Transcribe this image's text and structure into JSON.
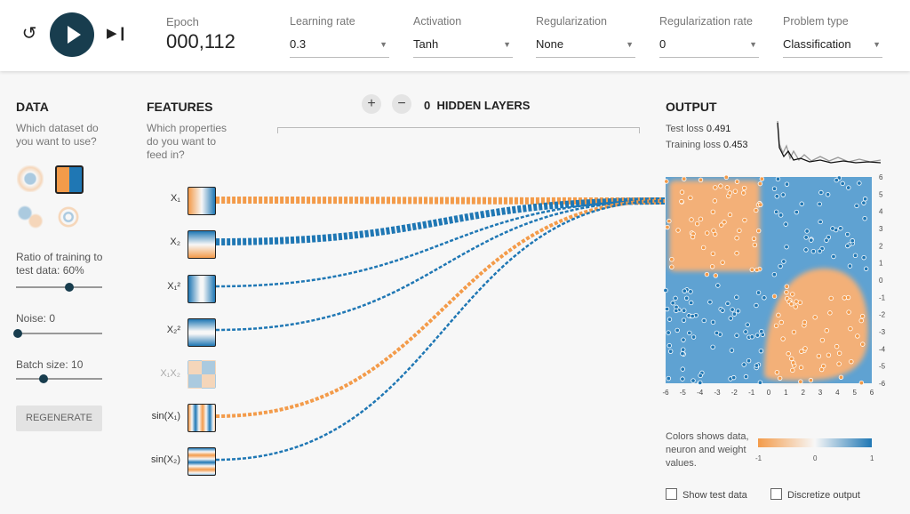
{
  "controls": {
    "epoch_label": "Epoch",
    "epoch_value": "000,112",
    "learning_rate_label": "Learning rate",
    "learning_rate_value": "0.3",
    "activation_label": "Activation",
    "activation_value": "Tanh",
    "regularization_label": "Regularization",
    "regularization_value": "None",
    "regularization_rate_label": "Regularization rate",
    "regularization_rate_value": "0",
    "problem_type_label": "Problem type",
    "problem_type_value": "Classification"
  },
  "data_panel": {
    "title": "DATA",
    "question": "Which dataset do you want to use?",
    "ratio_label": "Ratio of training to test data:  60%",
    "ratio_value": 60,
    "noise_label": "Noise:  0",
    "noise_value": 0,
    "batch_label": "Batch size:  10",
    "batch_value": 10,
    "regenerate": "REGENERATE"
  },
  "features_panel": {
    "title": "FEATURES",
    "question": "Which properties do you want to feed in?",
    "items": [
      {
        "label": "X₁",
        "enabled": true
      },
      {
        "label": "X₂",
        "enabled": true
      },
      {
        "label": "X₁²",
        "enabled": true
      },
      {
        "label": "X₂²",
        "enabled": true
      },
      {
        "label": "X₁X₂",
        "enabled": false
      },
      {
        "label": "sin(X₁)",
        "enabled": true
      },
      {
        "label": "sin(X₂)",
        "enabled": true
      }
    ]
  },
  "network": {
    "hidden_count": "0",
    "hidden_label": "HIDDEN LAYERS",
    "add": "+",
    "remove": "−"
  },
  "output_panel": {
    "title": "OUTPUT",
    "test_loss_label": "Test loss",
    "test_loss": "0.491",
    "training_loss_label": "Training loss",
    "training_loss": "0.453",
    "legend_text": "Colors shows data, neuron and weight values.",
    "legend_ticks": [
      "-1",
      "0",
      "1"
    ],
    "show_test": "Show test data",
    "discretize": "Discretize output"
  },
  "colors": {
    "positive": "#1f77b4",
    "negative": "#f39b4a",
    "dark": "#183d4e"
  },
  "chart_data": {
    "type": "scatter",
    "xlim": [
      -6,
      6
    ],
    "ylim": [
      -6,
      6
    ],
    "x_ticks": [
      "-6",
      "-5",
      "-4",
      "-3",
      "-2",
      "-1",
      "0",
      "1",
      "2",
      "3",
      "4",
      "5",
      "6"
    ],
    "y_ticks": [
      "6",
      "5",
      "4",
      "3",
      "2",
      "1",
      "0",
      "-1",
      "-2",
      "-3",
      "-4",
      "-5",
      "-6"
    ]
  }
}
